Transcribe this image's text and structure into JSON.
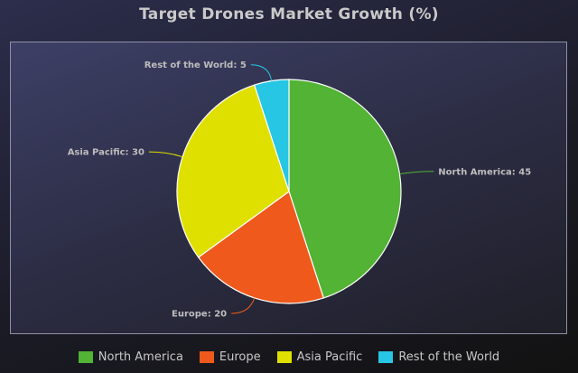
{
  "chart_data": {
    "type": "pie",
    "title": "Target Drones Market Growth (%)",
    "categories": [
      "North America",
      "Europe",
      "Asia Pacific",
      "Rest of the World"
    ],
    "values": [
      45,
      20,
      30,
      5
    ],
    "colors": [
      "#52b334",
      "#ef5a1c",
      "#e0e000",
      "#26c6e4"
    ],
    "legend_position": "bottom",
    "label_format": "name: value"
  }
}
